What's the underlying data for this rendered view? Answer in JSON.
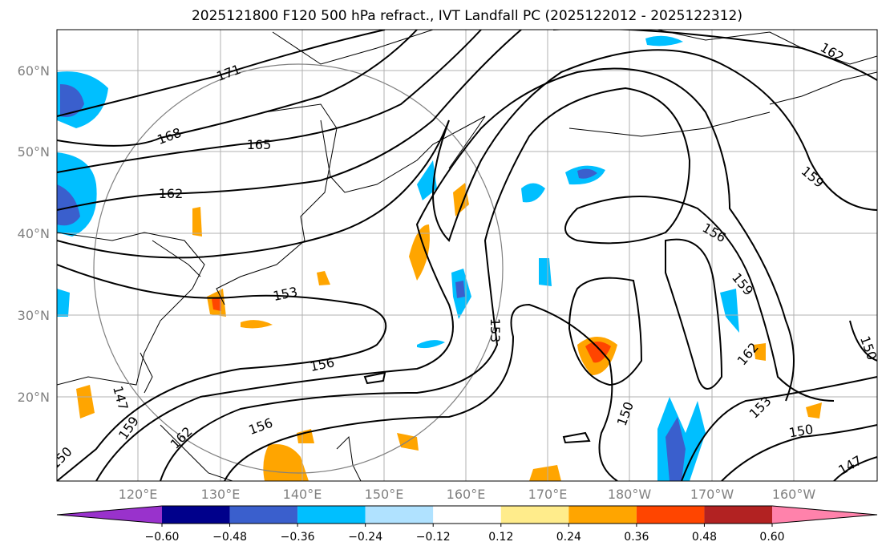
{
  "title": "2025121800 F120 500 hPa refract., IVT Landfall PC (2025122012 - 2025122312)",
  "lat_labels": [
    "60°N",
    "50°N",
    "40°N",
    "30°N",
    "20°N"
  ],
  "lon_labels": [
    "120°E",
    "130°E",
    "140°E",
    "150°E",
    "160°E",
    "170°E",
    "180°W",
    "170°W",
    "160°W"
  ],
  "contour_labels": [
    "171",
    "168",
    "165",
    "162",
    "153",
    "156",
    "147",
    "159",
    "162",
    "156",
    "153",
    "156",
    "159",
    "162",
    "159",
    "150",
    "162",
    "153",
    "150",
    "150",
    "147",
    "150"
  ],
  "colorbar": {
    "ticks": [
      "−0.60",
      "−0.48",
      "−0.36",
      "−0.24",
      "−0.12",
      "0.12",
      "0.24",
      "0.36",
      "0.48",
      "0.60"
    ],
    "colors": [
      "#9932cc",
      "#00008b",
      "#3a5fcd",
      "#00bfff",
      "#b0e2ff",
      "#ffffff",
      "#ffec8b",
      "#ffa500",
      "#ff4500",
      "#b22222",
      "#ff82ab"
    ]
  }
}
